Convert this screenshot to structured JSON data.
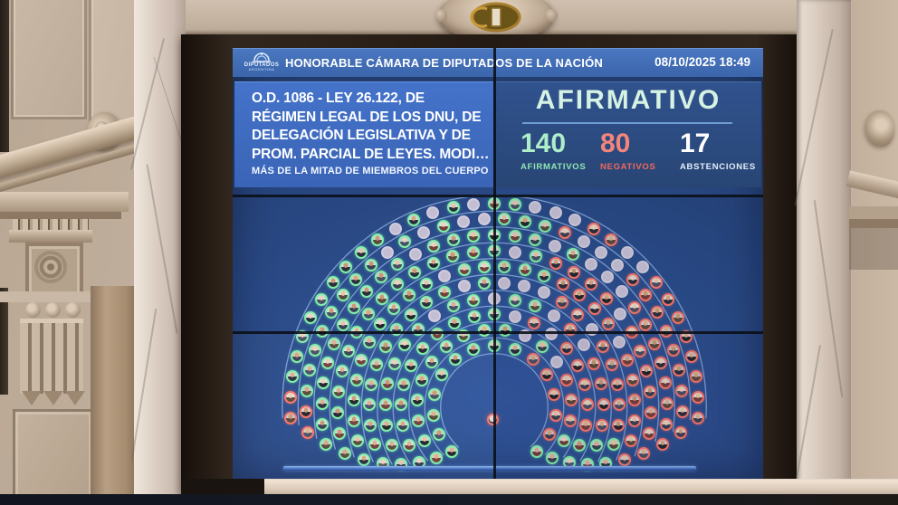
{
  "screen": {
    "logo": {
      "title": "DIPUTADOS",
      "subtitle": "ARGENTINA"
    },
    "header": {
      "title": "HONORABLE CÁMARA DE DIPUTADOS DE LA NACIÓN",
      "datetime": "08/10/2025 18:49"
    },
    "motion_panel": {
      "lines": [
        "O.D. 1086 - LEY 26.122, DE",
        "RÉGIMEN LEGAL DE LOS DNU, DE",
        "DELEGACIÓN LEGISLATIVA Y DE",
        "PROM. PARCIAL DE LEYES. MODI…"
      ],
      "quorum_note": "MÁS DE LA MITAD DE MIEMBROS DEL CUERPO"
    },
    "result_panel": {
      "verdict": "AFIRMATIVO",
      "verdict_color": "#d5f2e2",
      "counts": [
        {
          "value": "140",
          "label": "AFIRMATIVOS",
          "color": "#aeeec9"
        },
        {
          "value": "80",
          "label": "NEGATIVOS",
          "color": "#f5857b"
        },
        {
          "value": "17",
          "label": "ABSTENCIONES",
          "color": "#ffffff"
        }
      ]
    },
    "hemicycle": {
      "afirmativo": 140,
      "negativo": 80,
      "gray_circles": 37,
      "colors": {
        "afirmativo": "#82efa8",
        "negativo": "#f8766a",
        "gris": "#c4bed2",
        "arc_line": "#8fb2e2"
      }
    }
  },
  "chart_data": {
    "type": "parliament",
    "title": "AFIRMATIVO",
    "categories": [
      "AFIRMATIVOS",
      "NEGATIVOS",
      "ABSTENCIONES"
    ],
    "values": [
      140,
      80,
      17
    ],
    "legend_position": "top-right-panel",
    "annotations": [
      "O.D. 1086 - LEY 26.122, DE RÉGIMEN LEGAL DE LOS DNU, DE DELEGACIÓN LEGISLATIVA Y DE PROM. PARCIAL DE LEYES. MODI…",
      "MÁS DE LA MITAD DE MIEMBROS DEL CUERPO",
      "08/10/2025 18:49"
    ]
  }
}
